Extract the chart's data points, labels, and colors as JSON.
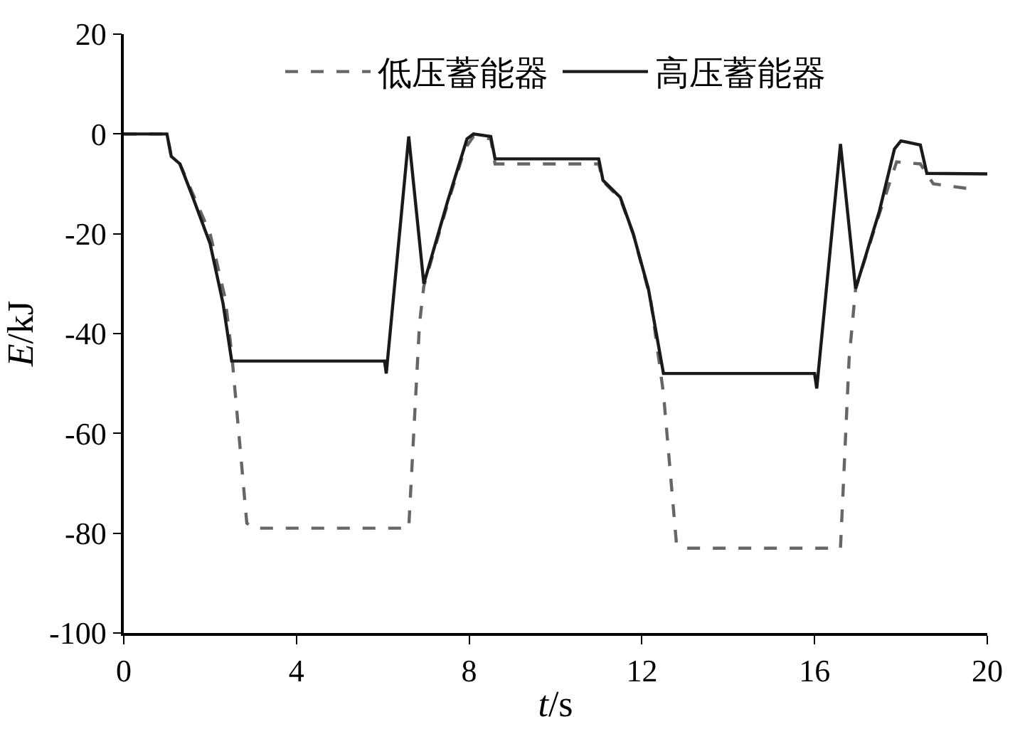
{
  "chart_data": {
    "type": "line",
    "xlabel": "t/s",
    "ylabel": "E/kJ",
    "xlim": [
      0,
      20
    ],
    "ylim": [
      -100,
      20
    ],
    "xticks": [
      0,
      4,
      8,
      12,
      16,
      20
    ],
    "yticks": [
      -100,
      -80,
      -60,
      -40,
      -20,
      0,
      20
    ],
    "legend": "top",
    "marker": "none",
    "series": [
      {
        "name": "低压蓄能器",
        "color": "#666666",
        "line_style": "dashed",
        "x": [
          0,
          1.0,
          1.1,
          1.3,
          1.6,
          2.0,
          2.35,
          2.5,
          2.85,
          3.0,
          6.6,
          6.85,
          6.95,
          7.5,
          7.9,
          8.1,
          8.5,
          8.6,
          11.0,
          11.1,
          11.5,
          11.8,
          12.2,
          12.5,
          12.8,
          13.0,
          16.6,
          16.8,
          16.95,
          17.5,
          17.9,
          18.45,
          18.75,
          19.6
        ],
        "values": [
          0,
          0,
          -4.5,
          -6,
          -12,
          -20,
          -33,
          -44,
          -78,
          -79,
          -79,
          -38,
          -30.5,
          -14,
          -3,
          -0.5,
          -1,
          -6,
          -6,
          -9.5,
          -13,
          -20,
          -33,
          -52,
          -82,
          -83,
          -83,
          -45,
          -31,
          -16,
          -5.6,
          -6,
          -10,
          -11
        ]
      },
      {
        "name": "高压蓄能器",
        "color": "#1a1a1a",
        "line_style": "solid",
        "x": [
          0,
          1.0,
          1.1,
          1.3,
          1.6,
          2.0,
          2.3,
          2.5,
          6.04,
          6.08,
          6.6,
          6.95,
          7.5,
          7.95,
          8.1,
          8.5,
          8.6,
          11.0,
          11.1,
          11.5,
          11.8,
          12.15,
          12.5,
          16.0,
          16.05,
          16.6,
          16.95,
          17.5,
          17.85,
          18.0,
          18.45,
          18.6,
          20.0
        ],
        "values": [
          0,
          0,
          -4.5,
          -6,
          -12.7,
          -22,
          -34,
          -45.5,
          -45.5,
          -48,
          -0.5,
          -30,
          -13.5,
          -1,
          0,
          -0.5,
          -5,
          -5,
          -9.3,
          -12.7,
          -20,
          -31,
          -48,
          -48,
          -51,
          -2,
          -31,
          -15.5,
          -3,
          -1.4,
          -2.2,
          -7.9,
          -8
        ]
      }
    ]
  }
}
